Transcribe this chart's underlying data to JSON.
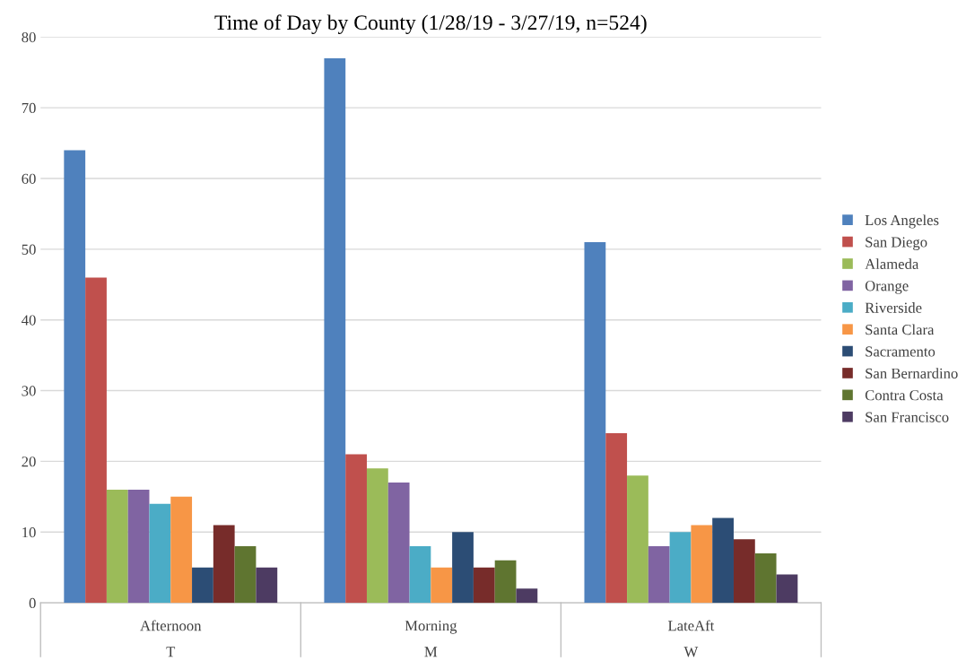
{
  "chart_data": {
    "type": "bar",
    "title": "Time of Day by County (1/28/19 - 3/27/19, n=524)",
    "categories": [
      "Afternoon\nT",
      "Morning\nM",
      "LateAft\nW"
    ],
    "series": [
      {
        "name": "Los Angeles",
        "color": "#4f81bd",
        "values": [
          64,
          77,
          51
        ]
      },
      {
        "name": "San Diego",
        "color": "#c0504d",
        "values": [
          46,
          21,
          24
        ]
      },
      {
        "name": "Alameda",
        "color": "#9bbb59",
        "values": [
          16,
          19,
          18
        ]
      },
      {
        "name": "Orange",
        "color": "#8064a2",
        "values": [
          16,
          17,
          8
        ]
      },
      {
        "name": "Riverside",
        "color": "#4bacc6",
        "values": [
          14,
          8,
          10
        ]
      },
      {
        "name": "Santa Clara",
        "color": "#f79646",
        "values": [
          15,
          5,
          11
        ]
      },
      {
        "name": "Sacramento",
        "color": "#2c4d75",
        "values": [
          5,
          10,
          12
        ]
      },
      {
        "name": "San Bernardino",
        "color": "#772c2a",
        "values": [
          11,
          5,
          9
        ]
      },
      {
        "name": "Contra Costa",
        "color": "#5f7530",
        "values": [
          8,
          6,
          7
        ]
      },
      {
        "name": "San Francisco",
        "color": "#4d3b62",
        "values": [
          5,
          2,
          4
        ]
      }
    ],
    "ylim": [
      0,
      80
    ],
    "yticks": [
      0,
      10,
      20,
      30,
      40,
      50,
      60,
      70,
      80
    ],
    "grid": "y",
    "legend": "right"
  }
}
